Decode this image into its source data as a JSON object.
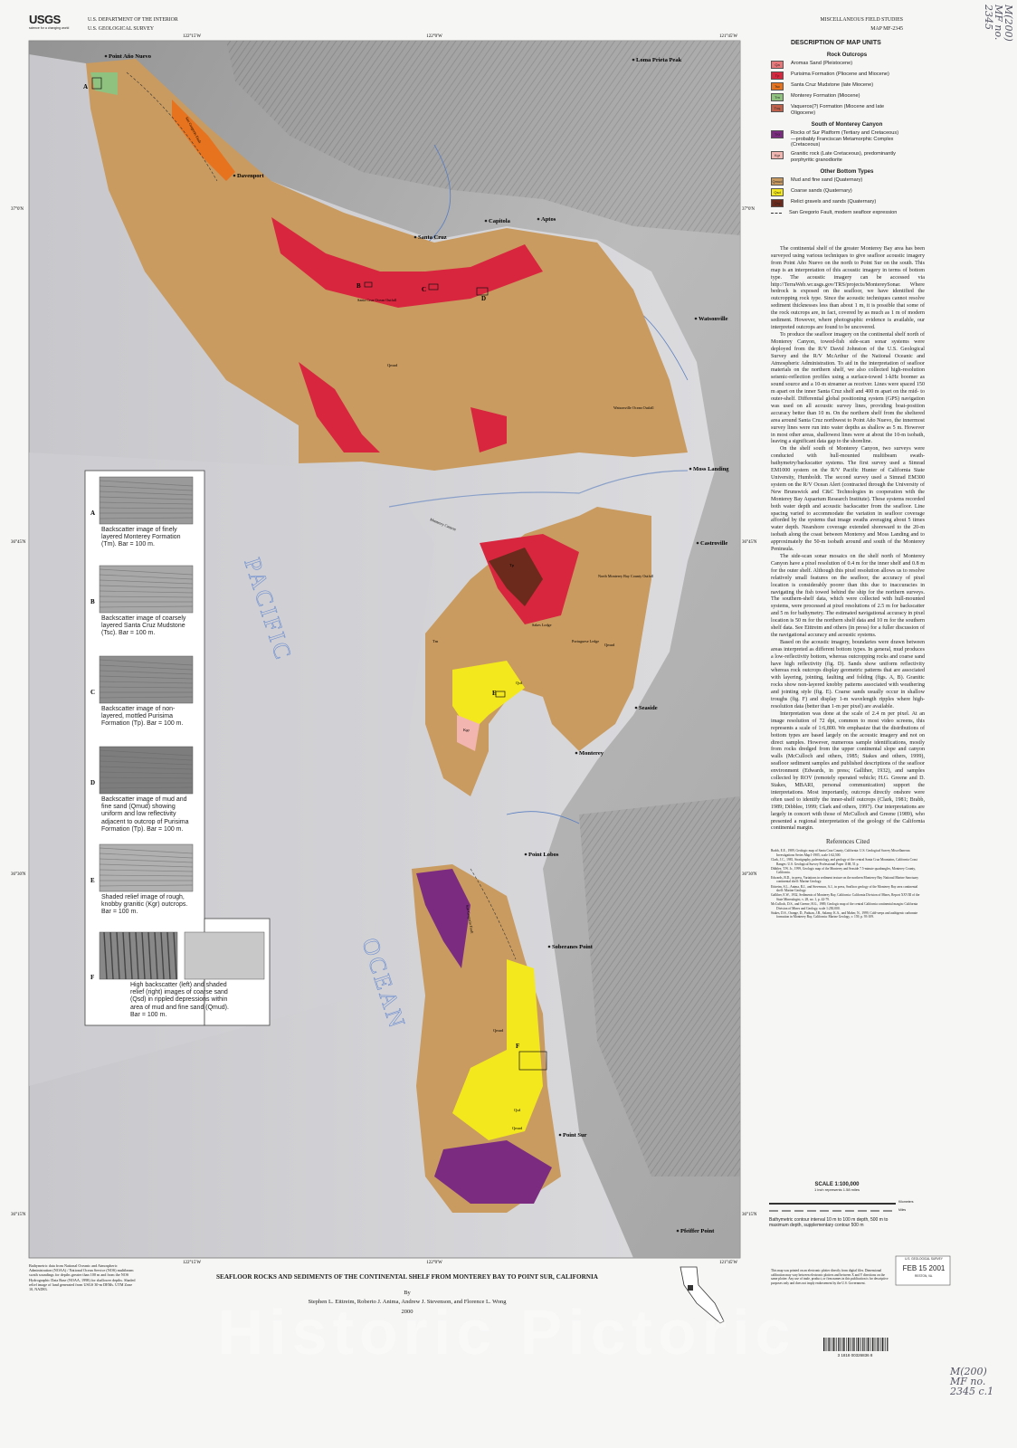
{
  "header": {
    "agency": "USGS",
    "tagline": "science for a changing world",
    "dept": "U.S. DEPARTMENT OF THE INTERIOR",
    "survey": "U.S. GEOLOGICAL SURVEY",
    "series": "MISCELLANEOUS FIELD STUDIES",
    "map_id": "MAP MF-2345"
  },
  "legend": {
    "title": "DESCRIPTION OF MAP UNITS",
    "groups": [
      {
        "heading": "Rock Outcrops",
        "units": [
          {
            "symbol": "Qa",
            "label": "Aromas Sand (Pleistocene)",
            "color": "#e8777a"
          },
          {
            "symbol": "Tp",
            "label": "Purisima Formation (Pliocene and Miocene)",
            "color": "#d9263f"
          },
          {
            "symbol": "Tsc",
            "label": "Santa Cruz Mudstone (late Miocene)",
            "color": "#e8731f"
          },
          {
            "symbol": "Tm",
            "label": "Monterey Formation (Miocene)",
            "color": "#8fc27f"
          },
          {
            "symbol": "Tvq",
            "label": "Vaqueros(?) Formation (Miocene and late Oligocene)",
            "color": "#c0604a"
          }
        ]
      },
      {
        "heading": "South of Monterey Canyon",
        "units": [
          {
            "symbol": "TKf",
            "label": "Rocks of Sur Platform (Tertiary and Cretaceous)—probably Franciscan Metamorphic Complex (Cretaceous)",
            "color": "#7b2c80"
          },
          {
            "symbol": "Kgr",
            "label": "Granitic rock (Late Cretaceous), predominantly porphyritic granodiorite",
            "color": "#f2b5b0"
          }
        ]
      },
      {
        "heading": "Other Bottom Types",
        "units": [
          {
            "symbol": "Qmud",
            "label": "Mud and fine sand (Quaternary)",
            "color": "#c99b60"
          },
          {
            "symbol": "Qsd",
            "label": "Coarse sands (Quaternary)",
            "color": "#f3e81e"
          },
          {
            "symbol": "Qrg",
            "label": "Relict gravels and sands (Quaternary)",
            "color": "#6b2a1c"
          }
        ]
      }
    ],
    "fault": "San Gregorio Fault, modern seafloor expression"
  },
  "map": {
    "lon_labels": [
      "122°15'W",
      "122°0'W",
      "121°45'W"
    ],
    "lat_labels": [
      "37°0'N",
      "36°45'N",
      "36°30'N",
      "36°15'N"
    ],
    "places": [
      "Point Año Nuevo",
      "Loma Prieta Peak",
      "Davenport",
      "Santa Cruz",
      "Capitola",
      "Aptos",
      "Watsonville",
      "Moss Landing",
      "Castroville",
      "Seaside",
      "Monterey",
      "Point Lobos",
      "Soberanes Point",
      "Point Sur",
      "Pfeiffer Point"
    ],
    "features": [
      "Santa Cruz Ocean Outfall",
      "Watsonville Ocean Outfall",
      "North Monterey Bay County Outfall",
      "Sakes Lodge",
      "Portuguese Ledge",
      "San Gregorio Fault",
      "Monterey Canyon",
      "San Gregorio Fault"
    ],
    "unit_labels": [
      "Qmud",
      "Qmud",
      "Qmud",
      "Qmud",
      "Qsd",
      "Qsd",
      "Tp",
      "Kgr",
      "Tm"
    ],
    "box_labels": [
      "A",
      "B",
      "C",
      "D",
      "E",
      "F"
    ],
    "ocean_labels": [
      "PACIFIC",
      "OCEAN"
    ]
  },
  "insets": [
    {
      "letter": "A",
      "caption": "Backscatter image of finely layered Monterey Formation (Tm). Bar = 100 m."
    },
    {
      "letter": "B",
      "caption": "Backscatter image of coarsely layered Santa Cruz Mudstone (Tsc). Bar = 100 m."
    },
    {
      "letter": "C",
      "caption": "Backscatter image of non-layered, mottled Purisima Formation (Tp). Bar = 100 m."
    },
    {
      "letter": "D",
      "caption": "Backscatter image of mud and fine sand (Qmud) showing uniform and low reflectivity adjacent to outcrop of Purisima Formation (Tp). Bar = 100 m."
    },
    {
      "letter": "E",
      "caption": "Shaded relief image of rough, knobby granitic (Kgr) outcrops. Bar = 100 m."
    },
    {
      "letter": "F",
      "caption": "High backscatter (left) and shaded relief (right) images of coarse sand (Qsd) in rippled depressions within area of mud and fine sand (Qmud). Bar = 100 m."
    }
  ],
  "text": {
    "paragraphs": [
      "The continental shelf of the greater Monterey Bay area has been surveyed using various techniques to give seafloor acoustic imagery from Point Año Nuevo on the north to Point Sur on the south. This map is an interpretation of this acoustic imagery in terms of bottom type. The acoustic imagery can be accessed via http://TerraWeb.wr.usgs.gov/TRS/projects/MontereySonar. Where bedrock is exposed on the seafloor, we have identified the outcropping rock type. Since the acoustic techniques cannot resolve sediment thicknesses less than about 1 m, it is possible that some of the rock outcrops are, in fact, covered by as much as 1 m of modern sediment. However, where photographic evidence is available, our interpreted outcrops are found to be uncovered.",
      "To produce the seafloor imagery on the continental shelf north of Monterey Canyon, towed-fish side-scan sonar systems were deployed from the R/V David Johnston of the U.S. Geological Survey and the R/V McArthur of the National Oceanic and Atmospheric Administration. To aid in the interpretation of seafloor materials on the northern shelf, we also collected high-resolution seismic-reflection profiles using a surface-towed 1-kHz boomer as sound source and a 10-m streamer as receiver. Lines were spaced 150 m apart on the inner Santa Cruz shelf and 400 m apart on the mid- to outer-shelf. Differential global positioning system (GPS) navigation was used on all acoustic survey lines, providing boat-position accuracy better than 10 m. On the northern shelf from the sheltered area around Santa Cruz northwest to Point Año Nuevo, the innermost survey lines were run into water depths as shallow as 5 m. However in most other areas, shallowest lines were at about the 10-m isobath, leaving a significant data gap to the shoreline.",
      "On the shelf south of Monterey Canyon, two surveys were conducted with hull-mounted multibeam swath-bathymetry/backscatter systems. The first survey used a Simrad EM1000 system on the R/V Pacific Hunter of California State University, Humboldt. The second survey used a Simrad EM300 system on the R/V Ocean Alert (contracted through the University of New Brunswick and C&C Technologies in cooperation with the Monterey Bay Aquarium Research Institute). These systems recorded both water depth and acoustic backscatter from the seafloor. Line spacing varied to accommodate the variation in seafloor coverage afforded by the systems that image swaths averaging about 5 times water depth. Nearshore coverage extended shoreward to the 20-m isobath along the coast between Monterey and Moss Landing and to approximately the 50-m isobath around and south of the Monterey Peninsula.",
      "The side-scan sonar mosaics on the shelf north of Monterey Canyon have a pixel resolution of 0.4 m for the inner shelf and 0.8 m for the outer shelf. Although this pixel resolution allows us to resolve relatively small features on the seafloor, the accuracy of pixel location is considerably poorer than this due to inaccuracies in navigating the fish towed behind the ship for the northern surveys. The southern-shelf data, which were collected with hull-mounted systems, were processed at pixel resolutions of 2.5 m for backscatter and 5 m for bathymetry. The estimated navigational accuracy in pixel location is 50 m for the northern shelf data and 10 m for the southern shelf data. See Eittreim and others (in press) for a fuller discussion of the navigational accuracy and acoustic systems.",
      "Based on the acoustic imagery, boundaries were drawn between areas interpreted as different bottom types. In general, mud produces a low-reflectivity bottom, whereas outcropping rocks and coarse sand have high reflectivity (fig. D). Sands show uniform reflectivity whereas rock outcrops display geometric patterns that are associated with layering, jointing, faulting and folding (figs. A, B). Granitic rocks show non-layered knobby patterns associated with weathering and jointing style (fig. E). Coarse sands usually occur in shallow troughs (fig. F) and display 1-m wavelength ripples where high-resolution data (better than 1-m per pixel) are available.",
      "Interpretation was done at the scale of 2.4 m per pixel. At an image resolution of 72 dpi, common to most video screens, this represents a scale of 1:6,800. We emphasize that the distributions of bottom types are based largely on the acoustic imagery and not on direct samples. However, numerous sample identifications, mostly from rocks dredged from the upper continental slope and canyon walls (McCulloch and others, 1985; Stakes and others, 1999), seafloor sediment samples and published descriptions of the seafloor environment (Edwards, in press; Galliher, 1932), and samples collected by ROV (remotely operated vehicle; H.G. Greene and D. Stakes, MBARI, personal communication) support the interpretations. Most importantly, outcrops directly onshore were often used to identify the inner-shelf outcrops (Clark, 1981; Brabb, 1989; Dibblee, 1999; Clark and others, 1997). Our interpretations are largely in concert with those of McCulloch and Greene (1989), who presented a regional interpretation of the geology of the California continental margin."
    ],
    "references_heading": "References Cited",
    "references": [
      "Brabb, E.E., 1989, Geologic map of Santa Cruz County, California: U.S. Geological Survey Miscellaneous Investigations Series Map I-1905, scale 1:62,500.",
      "Clark, J.C., 1981, Stratigraphy, paleontology, and geology of the central Santa Cruz Mountains, California Coast Ranges: U.S. Geological Survey Professional Paper 1168, 51 p.",
      "Dibblee, T.W. Jr., 1999, Geologic map of the Monterey and Seaside 7.5-minute quadrangles, Monterey County, California.",
      "Edwards, B.D., in press, Variations in sediment texture on the northern Monterey Bay National Marine Sanctuary continental shelf: Marine Geology.",
      "Eittreim, S.L., Anima, R.J., and Stevenson, A.J., in press, Seafloor geology of the Monterey Bay area continental shelf: Marine Geology.",
      "Galliher, E.W., 1932, Sediments of Monterey Bay, California: California Division of Mines, Report XXVIII of the State Mineralogist, v. 28, no. 1, p. 42-79.",
      "McCulloch, D.S., and Greene, H.G., 1989, Geologic map of the central California continental margin: California Division of Mines and Geology, scale 1:250,000.",
      "Stakes, D.S., Orange, D., Paduan, J.B., Salamy, K.A., and Maher, N., 1999, Cold-seeps and authigenic carbonate formation in Monterey Bay, California: Marine Geology, v. 159, p. 93-109."
    ]
  },
  "scale": {
    "title": "SCALE 1:100,000",
    "note": "1 inch represents 1.58 miles",
    "kilometers": "Kilometers",
    "miles": "Miles",
    "contour_note": "Bathymetric contour interval 10 m to 100 m depth, 500 m to maximum depth, supplementary contour 500 m"
  },
  "footer": {
    "title": "SEAFLOOR ROCKS AND SEDIMENTS OF THE CONTINENTAL SHELF FROM MONTEREY BAY TO POINT SUR, CALIFORNIA",
    "by": "By",
    "authors": "Stephen L. Eittreim, Roberto J. Anima, Andrew J. Stevenson, and Florence L. Wong",
    "year": "2000",
    "data_note": "Bathymetric data from National Oceanic and Atmospheric Administration (NOAA) / National Ocean Service (NOS) multibeam swath soundings for depths greater than 100 m and from the NOS Hydrographic Data Base (NOAA, 1998) for shallower depths. Shaded relief image of land generated from USGS 30-m DEMs. UTM Zone 10, NAD83.",
    "print_note": "This map was printed on an electronic plotter directly from digital files. Dimensional calibration may vary between electronic plotters and between X and Y directions on the same plotter. Any use of trade, product, or firm names in this publication is for descriptive purposes only and does not imply endorsement by the U.S. Government.",
    "stamp_agency": "U.S. GEOLOGICAL SURVEY",
    "stamp": "FEB 15 2001",
    "stamp_place": "RESTON, VA.",
    "barcode": "3 1818 00326836 8",
    "handwriting_top": "M(200) MF no. 2345",
    "handwriting_bottom": "M(200) MF no. 2345 c.1",
    "watermark": "Historic Pictoric"
  }
}
